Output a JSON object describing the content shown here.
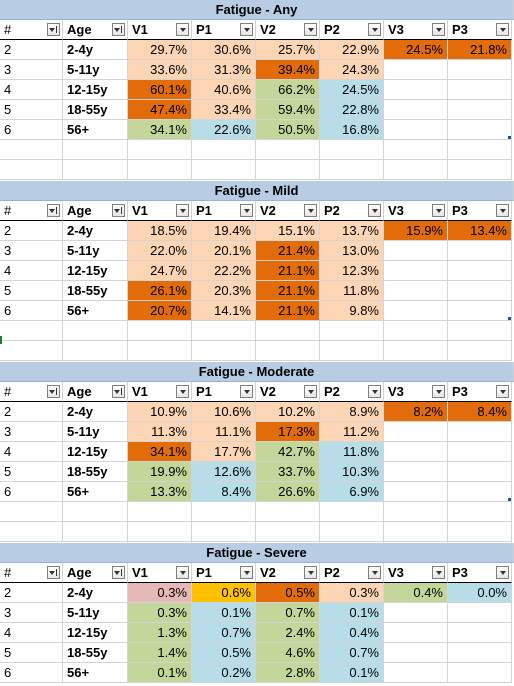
{
  "columns": [
    "#",
    "Age",
    "V1",
    "P1",
    "V2",
    "P2",
    "V3",
    "P3"
  ],
  "colors": {
    "light_peach": "#fcd5b4",
    "mid_orange": "#fabf8f",
    "dark_orange": "#e26b0a",
    "green": "#c4d79b",
    "blue": "#b7dee8",
    "pink": "#e6b8b7",
    "yellow": "#ffc000",
    "title_bg": "#b8cce4"
  },
  "tables": [
    {
      "title": "Fatigue - Any",
      "rows": [
        {
          "idx": "2",
          "age": "2-4y",
          "v1": "29.7%",
          "p1": "30.6%",
          "v2": "25.7%",
          "p2": "22.9%",
          "v3": "24.5%",
          "p3": "21.8%",
          "c": [
            "light_peach",
            "light_peach",
            "light_peach",
            "light_peach",
            "dark_orange",
            "dark_orange"
          ]
        },
        {
          "idx": "3",
          "age": "5-11y",
          "v1": "33.6%",
          "p1": "31.3%",
          "v2": "39.4%",
          "p2": "24.3%",
          "v3": "",
          "p3": "",
          "c": [
            "light_peach",
            "light_peach",
            "dark_orange",
            "light_peach",
            "",
            ""
          ]
        },
        {
          "idx": "4",
          "age": "12-15y",
          "v1": "60.1%",
          "p1": "40.6%",
          "v2": "66.2%",
          "p2": "24.5%",
          "v3": "",
          "p3": "",
          "c": [
            "dark_orange",
            "light_peach",
            "green",
            "blue",
            "",
            ""
          ]
        },
        {
          "idx": "5",
          "age": "18-55y",
          "v1": "47.4%",
          "p1": "33.4%",
          "v2": "59.4%",
          "p2": "22.8%",
          "v3": "",
          "p3": "",
          "c": [
            "dark_orange",
            "light_peach",
            "green",
            "blue",
            "",
            ""
          ]
        },
        {
          "idx": "6",
          "age": "56+",
          "v1": "34.1%",
          "p1": "22.6%",
          "v2": "50.5%",
          "p2": "16.8%",
          "v3": "",
          "p3": "",
          "c": [
            "green",
            "blue",
            "green",
            "blue",
            "",
            ""
          ]
        }
      ]
    },
    {
      "title": "Fatigue - Mild",
      "rows": [
        {
          "idx": "2",
          "age": "2-4y",
          "v1": "18.5%",
          "p1": "19.4%",
          "v2": "15.1%",
          "p2": "13.7%",
          "v3": "15.9%",
          "p3": "13.4%",
          "c": [
            "light_peach",
            "light_peach",
            "light_peach",
            "light_peach",
            "dark_orange",
            "dark_orange"
          ]
        },
        {
          "idx": "3",
          "age": "5-11y",
          "v1": "22.0%",
          "p1": "20.1%",
          "v2": "21.4%",
          "p2": "13.0%",
          "v3": "",
          "p3": "",
          "c": [
            "light_peach",
            "light_peach",
            "dark_orange",
            "light_peach",
            "",
            ""
          ]
        },
        {
          "idx": "4",
          "age": "12-15y",
          "v1": "24.7%",
          "p1": "22.2%",
          "v2": "21.1%",
          "p2": "12.3%",
          "v3": "",
          "p3": "",
          "c": [
            "light_peach",
            "light_peach",
            "dark_orange",
            "light_peach",
            "",
            ""
          ]
        },
        {
          "idx": "5",
          "age": "18-55y",
          "v1": "26.1%",
          "p1": "20.3%",
          "v2": "21.1%",
          "p2": "11.8%",
          "v3": "",
          "p3": "",
          "c": [
            "dark_orange",
            "light_peach",
            "dark_orange",
            "light_peach",
            "",
            ""
          ]
        },
        {
          "idx": "6",
          "age": "56+",
          "v1": "20.7%",
          "p1": "14.1%",
          "v2": "21.1%",
          "p2": "9.8%",
          "v3": "",
          "p3": "",
          "c": [
            "dark_orange",
            "light_peach",
            "dark_orange",
            "light_peach",
            "",
            ""
          ]
        }
      ]
    },
    {
      "title": "Fatigue - Moderate",
      "rows": [
        {
          "idx": "2",
          "age": "2-4y",
          "v1": "10.9%",
          "p1": "10.6%",
          "v2": "10.2%",
          "p2": "8.9%",
          "v3": "8.2%",
          "p3": "8.4%",
          "c": [
            "light_peach",
            "light_peach",
            "light_peach",
            "light_peach",
            "dark_orange",
            "dark_orange"
          ]
        },
        {
          "idx": "3",
          "age": "5-11y",
          "v1": "11.3%",
          "p1": "11.1%",
          "v2": "17.3%",
          "p2": "11.2%",
          "v3": "",
          "p3": "",
          "c": [
            "light_peach",
            "light_peach",
            "dark_orange",
            "light_peach",
            "",
            ""
          ]
        },
        {
          "idx": "4",
          "age": "12-15y",
          "v1": "34.1%",
          "p1": "17.7%",
          "v2": "42.7%",
          "p2": "11.8%",
          "v3": "",
          "p3": "",
          "c": [
            "dark_orange",
            "light_peach",
            "green",
            "blue",
            "",
            ""
          ]
        },
        {
          "idx": "5",
          "age": "18-55y",
          "v1": "19.9%",
          "p1": "12.6%",
          "v2": "33.7%",
          "p2": "10.3%",
          "v3": "",
          "p3": "",
          "c": [
            "green",
            "blue",
            "green",
            "blue",
            "",
            ""
          ]
        },
        {
          "idx": "6",
          "age": "56+",
          "v1": "13.3%",
          "p1": "8.4%",
          "v2": "26.6%",
          "p2": "6.9%",
          "v3": "",
          "p3": "",
          "c": [
            "green",
            "blue",
            "green",
            "blue",
            "",
            ""
          ]
        }
      ]
    },
    {
      "title": "Fatigue - Severe",
      "rows": [
        {
          "idx": "2",
          "age": "2-4y",
          "v1": "0.3%",
          "p1": "0.6%",
          "v2": "0.5%",
          "p2": "0.3%",
          "v3": "0.4%",
          "p3": "0.0%",
          "c": [
            "pink",
            "yellow",
            "dark_orange",
            "light_peach",
            "green",
            "blue"
          ]
        },
        {
          "idx": "3",
          "age": "5-11y",
          "v1": "0.3%",
          "p1": "0.1%",
          "v2": "0.7%",
          "p2": "0.1%",
          "v3": "",
          "p3": "",
          "c": [
            "green",
            "blue",
            "green",
            "blue",
            "",
            ""
          ]
        },
        {
          "idx": "4",
          "age": "12-15y",
          "v1": "1.3%",
          "p1": "0.7%",
          "v2": "2.4%",
          "p2": "0.4%",
          "v3": "",
          "p3": "",
          "c": [
            "green",
            "blue",
            "green",
            "blue",
            "",
            ""
          ]
        },
        {
          "idx": "5",
          "age": "18-55y",
          "v1": "1.4%",
          "p1": "0.5%",
          "v2": "4.6%",
          "p2": "0.7%",
          "v3": "",
          "p3": "",
          "c": [
            "green",
            "blue",
            "green",
            "blue",
            "",
            ""
          ]
        },
        {
          "idx": "6",
          "age": "56+",
          "v1": "0.1%",
          "p1": "0.2%",
          "v2": "2.8%",
          "p2": "0.1%",
          "v3": "",
          "p3": "",
          "c": [
            "green",
            "blue",
            "green",
            "blue",
            "",
            ""
          ]
        }
      ]
    }
  ]
}
